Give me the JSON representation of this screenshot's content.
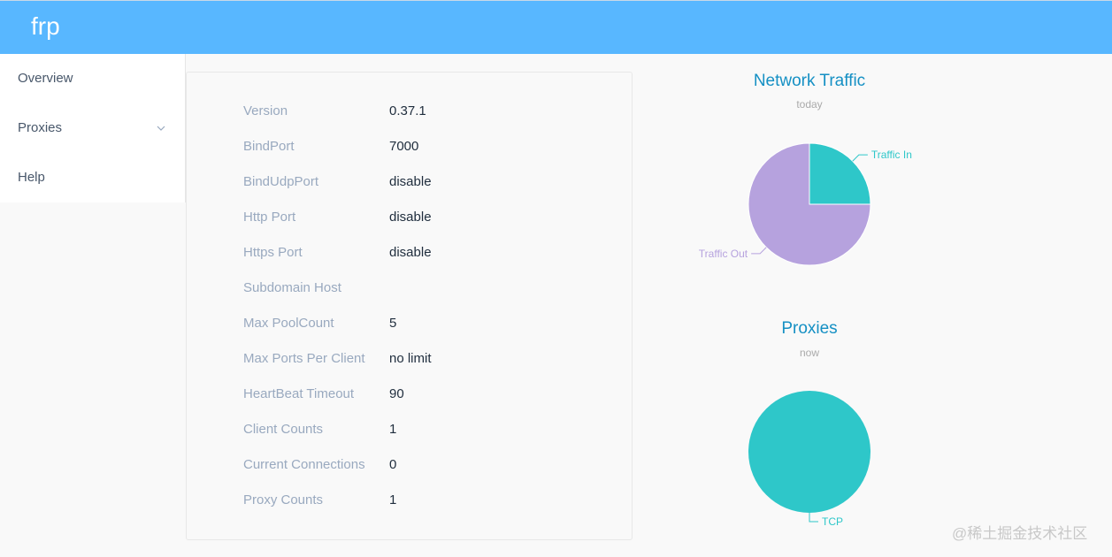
{
  "app": {
    "brand": "frp"
  },
  "sidebar": {
    "items": [
      {
        "label": "Overview"
      },
      {
        "label": "Proxies"
      },
      {
        "label": "Help"
      }
    ]
  },
  "server_info": {
    "rows": [
      {
        "label": "Version",
        "value": "0.37.1"
      },
      {
        "label": "BindPort",
        "value": "7000"
      },
      {
        "label": "BindUdpPort",
        "value": "disable"
      },
      {
        "label": "Http Port",
        "value": "disable"
      },
      {
        "label": "Https Port",
        "value": "disable"
      },
      {
        "label": "Subdomain Host",
        "value": ""
      },
      {
        "label": "Max PoolCount",
        "value": "5"
      },
      {
        "label": "Max Ports Per Client",
        "value": "no limit"
      },
      {
        "label": "HeartBeat Timeout",
        "value": "90"
      },
      {
        "label": "Client Counts",
        "value": "1"
      },
      {
        "label": "Current Connections",
        "value": "0"
      },
      {
        "label": "Proxy Counts",
        "value": "1"
      }
    ]
  },
  "chart_data": [
    {
      "type": "pie",
      "title": "Network Traffic",
      "subtitle": "today",
      "slices": [
        {
          "label": "Traffic In",
          "value": 25,
          "color": "#2ec7c9"
        },
        {
          "label": "Traffic Out",
          "value": 75,
          "color": "#b6a2de"
        }
      ]
    },
    {
      "type": "pie",
      "title": "Proxies",
      "subtitle": "now",
      "slices": [
        {
          "label": "TCP",
          "value": 100,
          "color": "#2ec7c9"
        }
      ]
    }
  ],
  "watermark": "@稀土掘金技术社区"
}
